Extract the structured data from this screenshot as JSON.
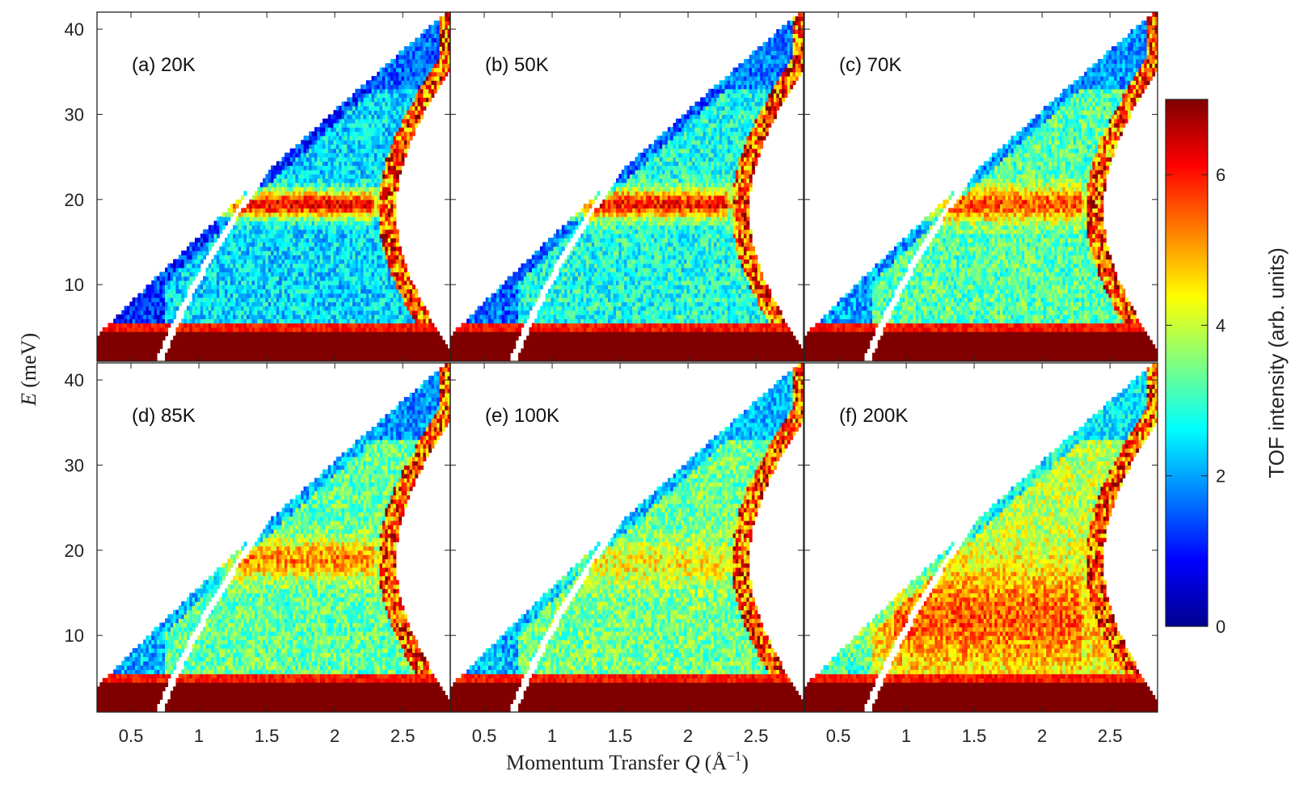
{
  "chart_data": {
    "type": "heatmap",
    "x": {
      "label": "Momentum Transfer Q (Å⁻¹)",
      "label_text": "Momentum Transfer ",
      "label_var": "Q",
      "label_unit": "(Å",
      "label_exp": "−1",
      "label_close": ")",
      "range": [
        0.25,
        2.85
      ],
      "ticks": [
        0.5,
        1,
        1.5,
        2,
        2.5
      ],
      "tick_labels": [
        "0.5",
        "1",
        "1.5",
        "2",
        "2.5"
      ]
    },
    "y": {
      "label": "E (meV)",
      "label_var": "E",
      "label_unit": " (meV)",
      "range": [
        1,
        42
      ],
      "ticks": [
        10,
        20,
        30,
        40
      ],
      "tick_labels": [
        "10",
        "20",
        "30",
        "40"
      ]
    },
    "colorbar": {
      "label": "TOF intensity (arb. units)",
      "range": [
        0,
        7
      ],
      "ticks": [
        0,
        2,
        4,
        6
      ],
      "tick_labels": [
        "0",
        "2",
        "4",
        "6"
      ],
      "colormap": "jet"
    },
    "kinematic_limits": {
      "upper_edge_E_at_Q": [
        [
          0.25,
          4
        ],
        [
          2.85,
          41.2
        ]
      ],
      "high_Q_cutoff_Q": [
        2.45,
        2.9
      ]
    },
    "panels": [
      {
        "label": "(a) 20K",
        "temperature_K": 20,
        "peak_E_meV": 19.5,
        "peak_intensity": 6.2,
        "peak_width_meV": 1.6,
        "background_level": 2.4,
        "elastic_line_E_meV": 4,
        "high_E_intensity": 0.9
      },
      {
        "label": "(b) 50K",
        "temperature_K": 50,
        "peak_E_meV": 19.5,
        "peak_intensity": 6.0,
        "peak_width_meV": 1.7,
        "background_level": 2.8,
        "elastic_line_E_meV": 4,
        "high_E_intensity": 1.0
      },
      {
        "label": "(c) 70K",
        "temperature_K": 70,
        "peak_E_meV": 19.5,
        "peak_intensity": 5.6,
        "peak_width_meV": 2.0,
        "background_level": 3.2,
        "elastic_line_E_meV": 4,
        "high_E_intensity": 1.2
      },
      {
        "label": "(d) 85K",
        "temperature_K": 85,
        "peak_E_meV": 19.0,
        "peak_intensity": 5.2,
        "peak_width_meV": 2.2,
        "background_level": 3.3,
        "elastic_line_E_meV": 4,
        "high_E_intensity": 1.2
      },
      {
        "label": "(e) 100K",
        "temperature_K": 100,
        "peak_E_meV": 18.5,
        "peak_intensity": 4.4,
        "peak_width_meV": 2.5,
        "background_level": 3.4,
        "elastic_line_E_meV": 4,
        "high_E_intensity": 1.5
      },
      {
        "label": "(f) 200K",
        "temperature_K": 200,
        "peak_E_meV": 12.0,
        "peak_intensity": 5.5,
        "peak_width_meV": 6.0,
        "background_level": 3.9,
        "elastic_line_E_meV": 4,
        "high_E_intensity": 1.8
      }
    ]
  }
}
